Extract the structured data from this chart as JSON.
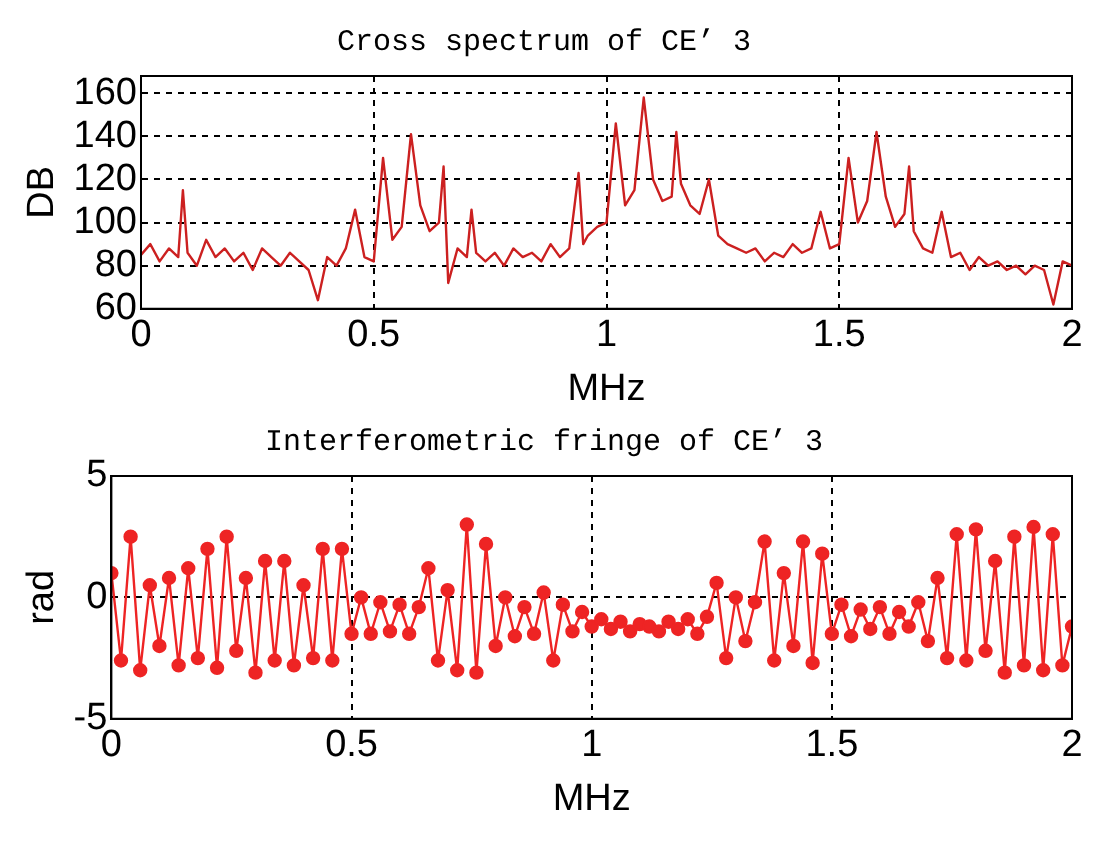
{
  "chart_data": [
    {
      "type": "line",
      "title": "Cross spectrum of CE’ 3",
      "xlabel": "MHz",
      "ylabel": "DB",
      "xlim": [
        0,
        2
      ],
      "xticks": [
        0,
        0.5,
        1,
        1.5,
        2
      ],
      "ylim": [
        60,
        168
      ],
      "yticks": [
        60,
        80,
        100,
        120,
        140,
        160
      ],
      "grid": true,
      "marker": "none",
      "line_style": "solid",
      "series": [
        {
          "color": "#cc2020",
          "x": [
            0,
            0.02,
            0.04,
            0.06,
            0.08,
            0.09,
            0.1,
            0.12,
            0.14,
            0.16,
            0.18,
            0.2,
            0.22,
            0.24,
            0.26,
            0.28,
            0.3,
            0.32,
            0.34,
            0.36,
            0.38,
            0.4,
            0.42,
            0.44,
            0.46,
            0.48,
            0.5,
            0.52,
            0.54,
            0.56,
            0.58,
            0.6,
            0.62,
            0.64,
            0.65,
            0.66,
            0.68,
            0.7,
            0.71,
            0.72,
            0.74,
            0.76,
            0.78,
            0.8,
            0.82,
            0.84,
            0.86,
            0.88,
            0.9,
            0.92,
            0.94,
            0.95,
            0.96,
            0.98,
            1,
            1.02,
            1.04,
            1.06,
            1.08,
            1.1,
            1.12,
            1.14,
            1.15,
            1.16,
            1.18,
            1.2,
            1.22,
            1.24,
            1.26,
            1.28,
            1.3,
            1.32,
            1.34,
            1.36,
            1.38,
            1.4,
            1.42,
            1.44,
            1.46,
            1.48,
            1.5,
            1.52,
            1.54,
            1.56,
            1.58,
            1.6,
            1.62,
            1.64,
            1.65,
            1.66,
            1.68,
            1.7,
            1.72,
            1.74,
            1.76,
            1.78,
            1.8,
            1.82,
            1.84,
            1.86,
            1.88,
            1.9,
            1.92,
            1.94,
            1.96,
            1.98,
            2
          ],
          "values": [
            85,
            90,
            82,
            88,
            84,
            115,
            86,
            80,
            92,
            84,
            88,
            82,
            86,
            78,
            88,
            84,
            80,
            86,
            82,
            78,
            64,
            84,
            80,
            88,
            106,
            84,
            82,
            130,
            92,
            98,
            141,
            108,
            96,
            100,
            126,
            72,
            88,
            84,
            106,
            86,
            82,
            86,
            80,
            88,
            84,
            86,
            82,
            90,
            84,
            88,
            123,
            90,
            94,
            98,
            100,
            146,
            108,
            115,
            158,
            120,
            110,
            112,
            142,
            118,
            108,
            104,
            120,
            94,
            90,
            88,
            86,
            88,
            82,
            86,
            84,
            90,
            86,
            88,
            105,
            88,
            90,
            130,
            100,
            110,
            142,
            112,
            98,
            104,
            126,
            96,
            88,
            86,
            105,
            84,
            86,
            78,
            84,
            80,
            82,
            78,
            80,
            76,
            80,
            78,
            62,
            82,
            80
          ]
        }
      ]
    },
    {
      "type": "line",
      "title": "Interferometric fringe of CE’ 3",
      "xlabel": "MHz",
      "ylabel": "rad",
      "xlim": [
        0,
        2
      ],
      "xticks": [
        0,
        0.5,
        1,
        1.5,
        2
      ],
      "ylim": [
        -5,
        5
      ],
      "yticks": [
        -5,
        0,
        5
      ],
      "grid": true,
      "marker": "circle",
      "line_style": "solid",
      "series": [
        {
          "color": "#ee2424",
          "x": [
            0,
            0.02,
            0.04,
            0.06,
            0.08,
            0.1,
            0.12,
            0.14,
            0.16,
            0.18,
            0.2,
            0.22,
            0.24,
            0.26,
            0.28,
            0.3,
            0.32,
            0.34,
            0.36,
            0.38,
            0.4,
            0.42,
            0.44,
            0.46,
            0.48,
            0.5,
            0.52,
            0.54,
            0.56,
            0.58,
            0.6,
            0.62,
            0.64,
            0.66,
            0.68,
            0.7,
            0.72,
            0.74,
            0.76,
            0.78,
            0.8,
            0.82,
            0.84,
            0.86,
            0.88,
            0.9,
            0.92,
            0.94,
            0.96,
            0.98,
            1,
            1.02,
            1.04,
            1.06,
            1.08,
            1.1,
            1.12,
            1.14,
            1.16,
            1.18,
            1.2,
            1.22,
            1.24,
            1.26,
            1.28,
            1.3,
            1.32,
            1.34,
            1.36,
            1.38,
            1.4,
            1.42,
            1.44,
            1.46,
            1.48,
            1.5,
            1.52,
            1.54,
            1.56,
            1.58,
            1.6,
            1.62,
            1.64,
            1.66,
            1.68,
            1.7,
            1.72,
            1.74,
            1.76,
            1.78,
            1.8,
            1.82,
            1.84,
            1.86,
            1.88,
            1.9,
            1.92,
            1.94,
            1.96,
            1.98,
            2
          ],
          "values": [
            1,
            -2.6,
            2.5,
            -3,
            0.5,
            -2,
            0.8,
            -2.8,
            1.2,
            -2.5,
            2,
            -2.9,
            2.5,
            -2.2,
            0.8,
            -3.1,
            1.5,
            -2.6,
            1.5,
            -2.8,
            0.5,
            -2.5,
            2,
            -2.6,
            2,
            -1.5,
            0,
            -1.5,
            -0.2,
            -1.4,
            -0.3,
            -1.5,
            -0.4,
            1.2,
            -2.6,
            0.3,
            -3,
            3,
            -3.1,
            2.2,
            -2,
            0,
            -1.6,
            -0.4,
            -1.5,
            0.2,
            -2.6,
            -0.3,
            -1.4,
            -0.6,
            -1.2,
            -0.9,
            -1.3,
            -1,
            -1.4,
            -1.1,
            -1.2,
            -1.4,
            -1,
            -1.3,
            -0.9,
            -1.5,
            -0.8,
            0.6,
            -2.5,
            0,
            -1.8,
            -0.2,
            2.3,
            -2.6,
            1,
            -2,
            2.3,
            -2.7,
            1.8,
            -1.5,
            -0.3,
            -1.6,
            -0.5,
            -1.3,
            -0.4,
            -1.5,
            -0.6,
            -1.2,
            -0.2,
            -1.8,
            0.8,
            -2.5,
            2.6,
            -2.6,
            2.8,
            -2.2,
            1.5,
            -3.1,
            2.5,
            -2.8,
            2.9,
            -3,
            2.6,
            -2.8,
            -1.2
          ]
        }
      ]
    }
  ]
}
